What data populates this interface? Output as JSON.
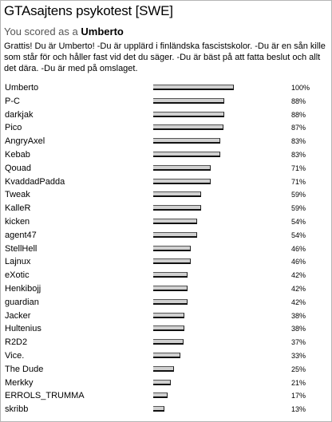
{
  "header": {
    "title": "GTAsajtens psykotest [SWE]",
    "scored_prefix": "You scored as a",
    "scored_name": "Umberto",
    "description": "Grattis! Du är Umberto! -Du är upplärd i finländska fascistskolor. -Du är en sån kille som står för och håller fast vid det du säger. -Du är bäst på att fatta beslut och allt det dära. -Du är med på omslaget."
  },
  "results": [
    {
      "name": "Umberto",
      "value": 100,
      "label": "100%"
    },
    {
      "name": "P-C",
      "value": 88,
      "label": "88%"
    },
    {
      "name": "darkjak",
      "value": 88,
      "label": "88%"
    },
    {
      "name": "Pico",
      "value": 87,
      "label": "87%"
    },
    {
      "name": "AngryAxel",
      "value": 83,
      "label": "83%"
    },
    {
      "name": "Kebab",
      "value": 83,
      "label": "83%"
    },
    {
      "name": "Qouad",
      "value": 71,
      "label": "71%"
    },
    {
      "name": "KvaddadPadda",
      "value": 71,
      "label": "71%"
    },
    {
      "name": "Tweak",
      "value": 59,
      "label": "59%"
    },
    {
      "name": "KalleR",
      "value": 59,
      "label": "59%"
    },
    {
      "name": "kicken",
      "value": 54,
      "label": "54%"
    },
    {
      "name": "agent47",
      "value": 54,
      "label": "54%"
    },
    {
      "name": "StellHell",
      "value": 46,
      "label": "46%"
    },
    {
      "name": "Lajnux",
      "value": 46,
      "label": "46%"
    },
    {
      "name": "eXotic",
      "value": 42,
      "label": "42%"
    },
    {
      "name": "Henkibojj",
      "value": 42,
      "label": "42%"
    },
    {
      "name": "guardian",
      "value": 42,
      "label": "42%"
    },
    {
      "name": "Jacker",
      "value": 38,
      "label": "38%"
    },
    {
      "name": "Hultenius",
      "value": 38,
      "label": "38%"
    },
    {
      "name": "R2D2",
      "value": 37,
      "label": "37%"
    },
    {
      "name": "Vice.",
      "value": 33,
      "label": "33%"
    },
    {
      "name": "The Dude",
      "value": 25,
      "label": "25%"
    },
    {
      "name": "Merkky",
      "value": 21,
      "label": "21%"
    },
    {
      "name": "ERROLS_TRUMMA",
      "value": 17,
      "label": "17%"
    },
    {
      "name": "skribb",
      "value": 13,
      "label": "13%"
    }
  ]
}
